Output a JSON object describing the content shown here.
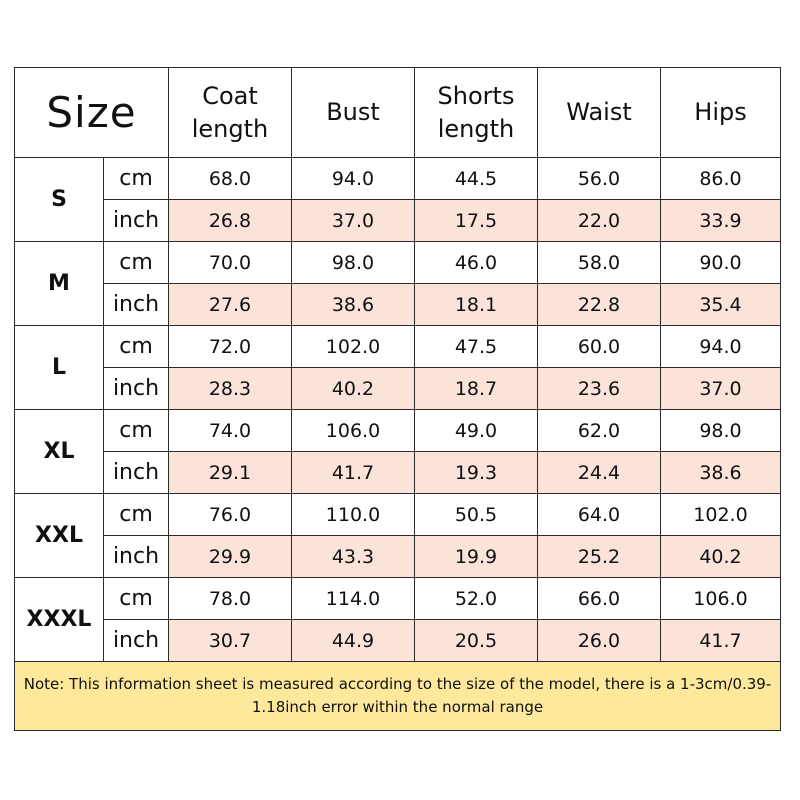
{
  "header": {
    "size_title": "Size",
    "columns": [
      [
        "Coat",
        "length"
      ],
      [
        "Bust"
      ],
      [
        "Shorts",
        "length"
      ],
      [
        "Waist"
      ],
      [
        "Hips"
      ]
    ]
  },
  "sizes": [
    {
      "label": "S",
      "cm": {
        "unit": "cm",
        "values": [
          "68.0",
          "94.0",
          "44.5",
          "56.0",
          "86.0"
        ]
      },
      "inch": {
        "unit": "inch",
        "values": [
          "26.8",
          "37.0",
          "17.5",
          "22.0",
          "33.9"
        ]
      }
    },
    {
      "label": "M",
      "cm": {
        "unit": "cm",
        "values": [
          "70.0",
          "98.0",
          "46.0",
          "58.0",
          "90.0"
        ]
      },
      "inch": {
        "unit": "inch",
        "values": [
          "27.6",
          "38.6",
          "18.1",
          "22.8",
          "35.4"
        ]
      }
    },
    {
      "label": "L",
      "cm": {
        "unit": "cm",
        "values": [
          "72.0",
          "102.0",
          "47.5",
          "60.0",
          "94.0"
        ]
      },
      "inch": {
        "unit": "inch",
        "values": [
          "28.3",
          "40.2",
          "18.7",
          "23.6",
          "37.0"
        ]
      }
    },
    {
      "label": "XL",
      "cm": {
        "unit": "cm",
        "values": [
          "74.0",
          "106.0",
          "49.0",
          "62.0",
          "98.0"
        ]
      },
      "inch": {
        "unit": "inch",
        "values": [
          "29.1",
          "41.7",
          "19.3",
          "24.4",
          "38.6"
        ]
      }
    },
    {
      "label": "XXL",
      "cm": {
        "unit": "cm",
        "values": [
          "76.0",
          "110.0",
          "50.5",
          "64.0",
          "102.0"
        ]
      },
      "inch": {
        "unit": "inch",
        "values": [
          "29.9",
          "43.3",
          "19.9",
          "25.2",
          "40.2"
        ]
      }
    },
    {
      "label": "XXXL",
      "cm": {
        "unit": "cm",
        "values": [
          "78.0",
          "114.0",
          "52.0",
          "66.0",
          "106.0"
        ]
      },
      "inch": {
        "unit": "inch",
        "values": [
          "30.7",
          "44.9",
          "20.5",
          "26.0",
          "41.7"
        ]
      }
    }
  ],
  "note": "Note: This information sheet is measured according to the size of the model, there is a 1-3cm/0.39-1.18inch error within the normal range",
  "colors": {
    "inch_row_fill": "#fbe3da",
    "note_fill": "#fde89c",
    "border": "#2b2b2b"
  }
}
